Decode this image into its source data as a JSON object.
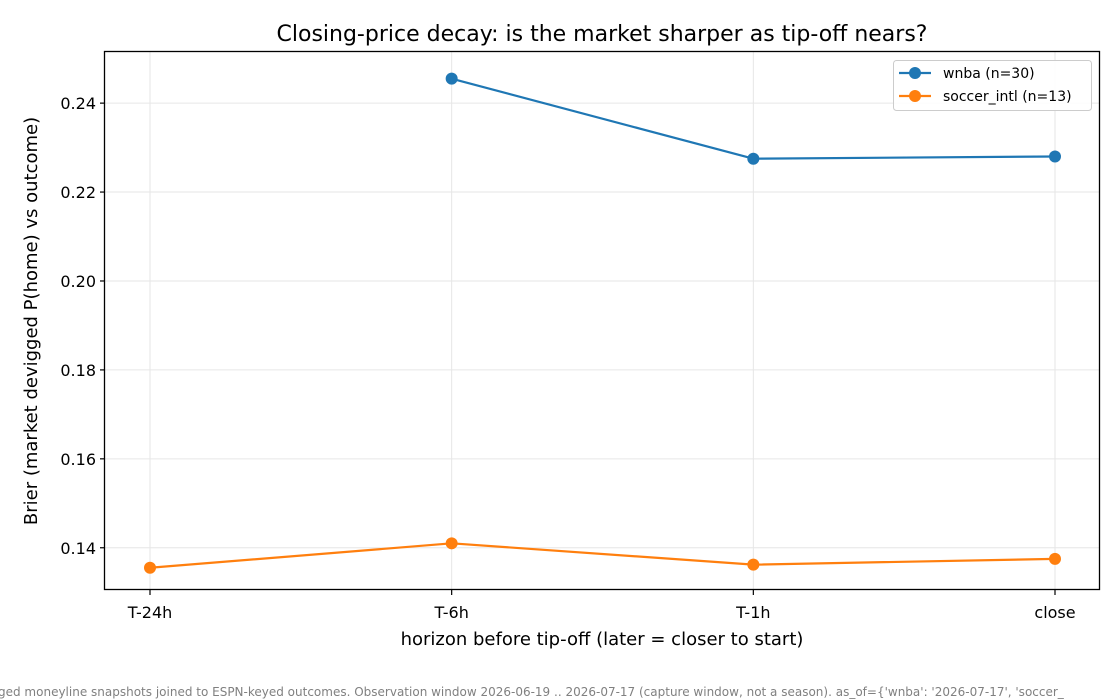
{
  "chart_data": {
    "type": "line",
    "title": "Closing-price decay: is the market sharper as tip-off nears?",
    "xlabel": "horizon before tip-off (later = closer to start)",
    "ylabel": "Brier (market devigged P(home) vs outcome)",
    "categories": [
      "T-24h",
      "T-6h",
      "T-1h",
      "close"
    ],
    "ylim": [
      0.1305,
      0.2515
    ],
    "yticks": [
      0.14,
      0.16,
      0.18,
      0.2,
      0.22,
      0.24
    ],
    "ytick_labels": [
      "0.14",
      "0.16",
      "0.18",
      "0.20",
      "0.22",
      "0.24"
    ],
    "grid": true,
    "legend_position": "top-right",
    "series": [
      {
        "name": "wnba (n=30)",
        "color": "#1f77b4",
        "values": [
          null,
          0.2455,
          0.2275,
          0.228
        ]
      },
      {
        "name": "soccer_intl (n=13)",
        "color": "#ff7f0e",
        "values": [
          0.1355,
          0.141,
          0.1362,
          0.1375
        ]
      }
    ],
    "footnote": "ged moneyline snapshots joined to ESPN-keyed outcomes. Observation window 2026-06-19 .. 2026-07-17 (capture window, not a season). as_of={'wnba': '2026-07-17', 'soccer_"
  }
}
